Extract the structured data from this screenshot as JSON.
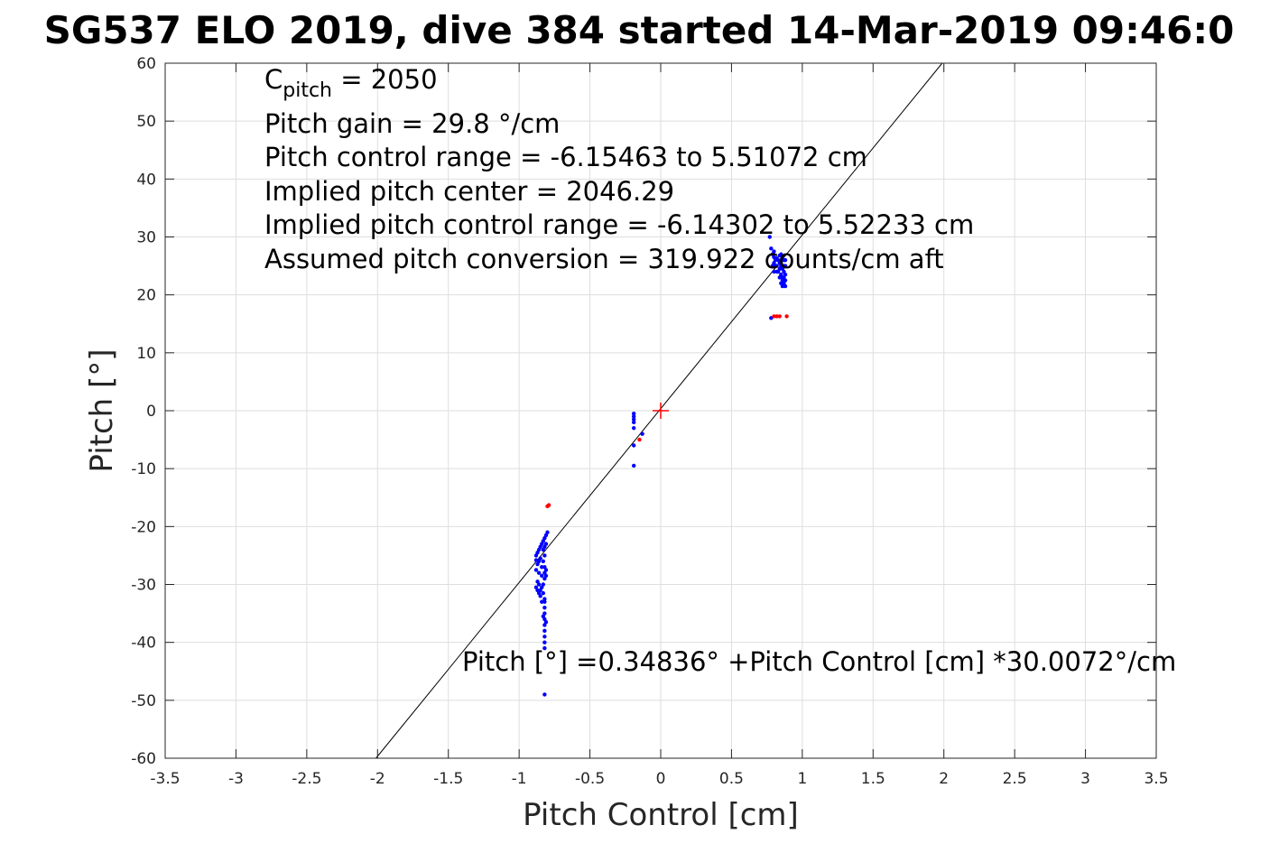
{
  "chart_data": {
    "type": "scatter",
    "title": "SG537 ELO 2019, dive 384 started 14-Mar-2019 09:46:0",
    "xlabel": "Pitch Control [cm]",
    "ylabel": "Pitch [°]",
    "xlim": [
      -3.5,
      3.5
    ],
    "ylim": [
      -60,
      60
    ],
    "grid": true,
    "xticks": [
      -3.5,
      -3,
      -2.5,
      -2,
      -1.5,
      -1,
      -0.5,
      0,
      0.5,
      1,
      1.5,
      2,
      2.5,
      3,
      3.5
    ],
    "xtick_labels": [
      "-3.5",
      "-3",
      "-2.5",
      "-2",
      "-1.5",
      "-1",
      "-0.5",
      "0",
      "0.5",
      "1",
      "1.5",
      "2",
      "2.5",
      "3",
      "3.5"
    ],
    "yticks": [
      -60,
      -50,
      -40,
      -30,
      -20,
      -10,
      0,
      10,
      20,
      30,
      40,
      50,
      60
    ],
    "ytick_labels": [
      "-60",
      "-50",
      "-40",
      "-30",
      "-20",
      "-10",
      "0",
      "10",
      "20",
      "30",
      "40",
      "50",
      "60"
    ],
    "annotations": {
      "c_pitch_main": "C",
      "c_pitch_sub": "pitch",
      "c_pitch_value": " = 2050",
      "line2": "Pitch gain = 29.8 °/cm",
      "line3": "Pitch control range = -6.15463 to 5.51072 cm",
      "line4": "Implied pitch center = 2046.29",
      "line5": "Implied pitch control range = -6.14302 to 5.52233 cm",
      "line6": "Assumed pitch conversion = 319.922 counts/cm aft",
      "fit_equation": "Pitch [°] =0.34836° +Pitch Control [cm] *30.0072°/cm"
    },
    "fit_line": {
      "intercept": 0.34836,
      "slope": 30.0072,
      "color": "#000000"
    },
    "center_marker": {
      "x": 0,
      "y": 0,
      "color": "#ff0000"
    },
    "series": [
      {
        "color": "#0000ff",
        "points": [
          [
            0.77,
            30
          ],
          [
            0.78,
            28
          ],
          [
            0.79,
            27
          ],
          [
            0.8,
            26.5
          ],
          [
            0.81,
            26
          ],
          [
            0.8,
            25.5
          ],
          [
            0.82,
            25
          ],
          [
            0.83,
            26
          ],
          [
            0.84,
            25.5
          ],
          [
            0.85,
            26
          ],
          [
            0.86,
            26.5
          ],
          [
            0.87,
            26
          ],
          [
            0.85,
            25
          ],
          [
            0.84,
            24.5
          ],
          [
            0.86,
            24.5
          ],
          [
            0.87,
            24
          ],
          [
            0.88,
            23.5
          ],
          [
            0.87,
            23
          ],
          [
            0.86,
            22.5
          ],
          [
            0.85,
            22
          ],
          [
            0.87,
            22
          ],
          [
            0.88,
            21.5
          ],
          [
            0.86,
            21.5
          ],
          [
            0.85,
            23.5
          ],
          [
            0.84,
            23
          ],
          [
            0.83,
            24
          ],
          [
            0.82,
            24
          ],
          [
            0.81,
            25
          ],
          [
            0.79,
            25
          ],
          [
            0.8,
            24
          ],
          [
            0.88,
            25
          ],
          [
            0.88,
            26
          ],
          [
            0.87,
            25
          ],
          [
            0.86,
            23
          ],
          [
            0.88,
            22.5
          ],
          [
            0.85,
            27
          ],
          [
            0.84,
            26.8
          ],
          [
            0.8,
            27.5
          ],
          [
            0.78,
            16
          ],
          [
            0.82,
            26.3
          ],
          [
            -0.19,
            -0.5
          ],
          [
            -0.19,
            -1
          ],
          [
            -0.19,
            -1.5
          ],
          [
            -0.19,
            -2
          ],
          [
            -0.19,
            -3
          ],
          [
            -0.19,
            -6
          ],
          [
            -0.19,
            -9.5
          ],
          [
            -0.13,
            -4
          ],
          [
            -0.8,
            -21
          ],
          [
            -0.81,
            -21.5
          ],
          [
            -0.82,
            -22
          ],
          [
            -0.83,
            -22.5
          ],
          [
            -0.84,
            -23
          ],
          [
            -0.85,
            -23.5
          ],
          [
            -0.86,
            -24
          ],
          [
            -0.87,
            -24.5
          ],
          [
            -0.88,
            -25
          ],
          [
            -0.85,
            -25.5
          ],
          [
            -0.86,
            -26
          ],
          [
            -0.87,
            -26.5
          ],
          [
            -0.88,
            -25.8
          ],
          [
            -0.83,
            -24
          ],
          [
            -0.82,
            -23.5
          ],
          [
            -0.81,
            -23
          ],
          [
            -0.82,
            -25
          ],
          [
            -0.83,
            -26
          ],
          [
            -0.84,
            -27
          ],
          [
            -0.82,
            -27
          ],
          [
            -0.81,
            -27.5
          ],
          [
            -0.82,
            -28
          ],
          [
            -0.81,
            -28.5
          ],
          [
            -0.82,
            -29
          ],
          [
            -0.83,
            -30
          ],
          [
            -0.84,
            -30.5
          ],
          [
            -0.85,
            -31
          ],
          [
            -0.86,
            -31.5
          ],
          [
            -0.87,
            -31
          ],
          [
            -0.88,
            -30.5
          ],
          [
            -0.86,
            -30
          ],
          [
            -0.85,
            -32
          ],
          [
            -0.82,
            -32.5
          ],
          [
            -0.82,
            -33
          ],
          [
            -0.82,
            -34
          ],
          [
            -0.82,
            -35
          ],
          [
            -0.82,
            -36
          ],
          [
            -0.82,
            -37
          ],
          [
            -0.82,
            -38
          ],
          [
            -0.82,
            -39
          ],
          [
            -0.82,
            -40
          ],
          [
            -0.82,
            -41
          ],
          [
            -0.87,
            -29.5
          ],
          [
            -0.88,
            -27.5
          ],
          [
            -0.86,
            -28
          ],
          [
            -0.84,
            -28.5
          ],
          [
            -0.83,
            -31.5
          ],
          [
            -0.84,
            -33
          ],
          [
            -0.83,
            -35.5
          ],
          [
            -0.81,
            -36.5
          ],
          [
            -0.82,
            -49
          ]
        ]
      },
      {
        "color": "#ff0000",
        "points": [
          [
            -0.79,
            -16.3
          ],
          [
            -0.8,
            -16.5
          ],
          [
            -0.15,
            -5
          ],
          [
            0.8,
            16.3
          ],
          [
            0.82,
            16.3
          ],
          [
            0.84,
            16.3
          ],
          [
            0.89,
            16.3
          ]
        ]
      }
    ]
  }
}
